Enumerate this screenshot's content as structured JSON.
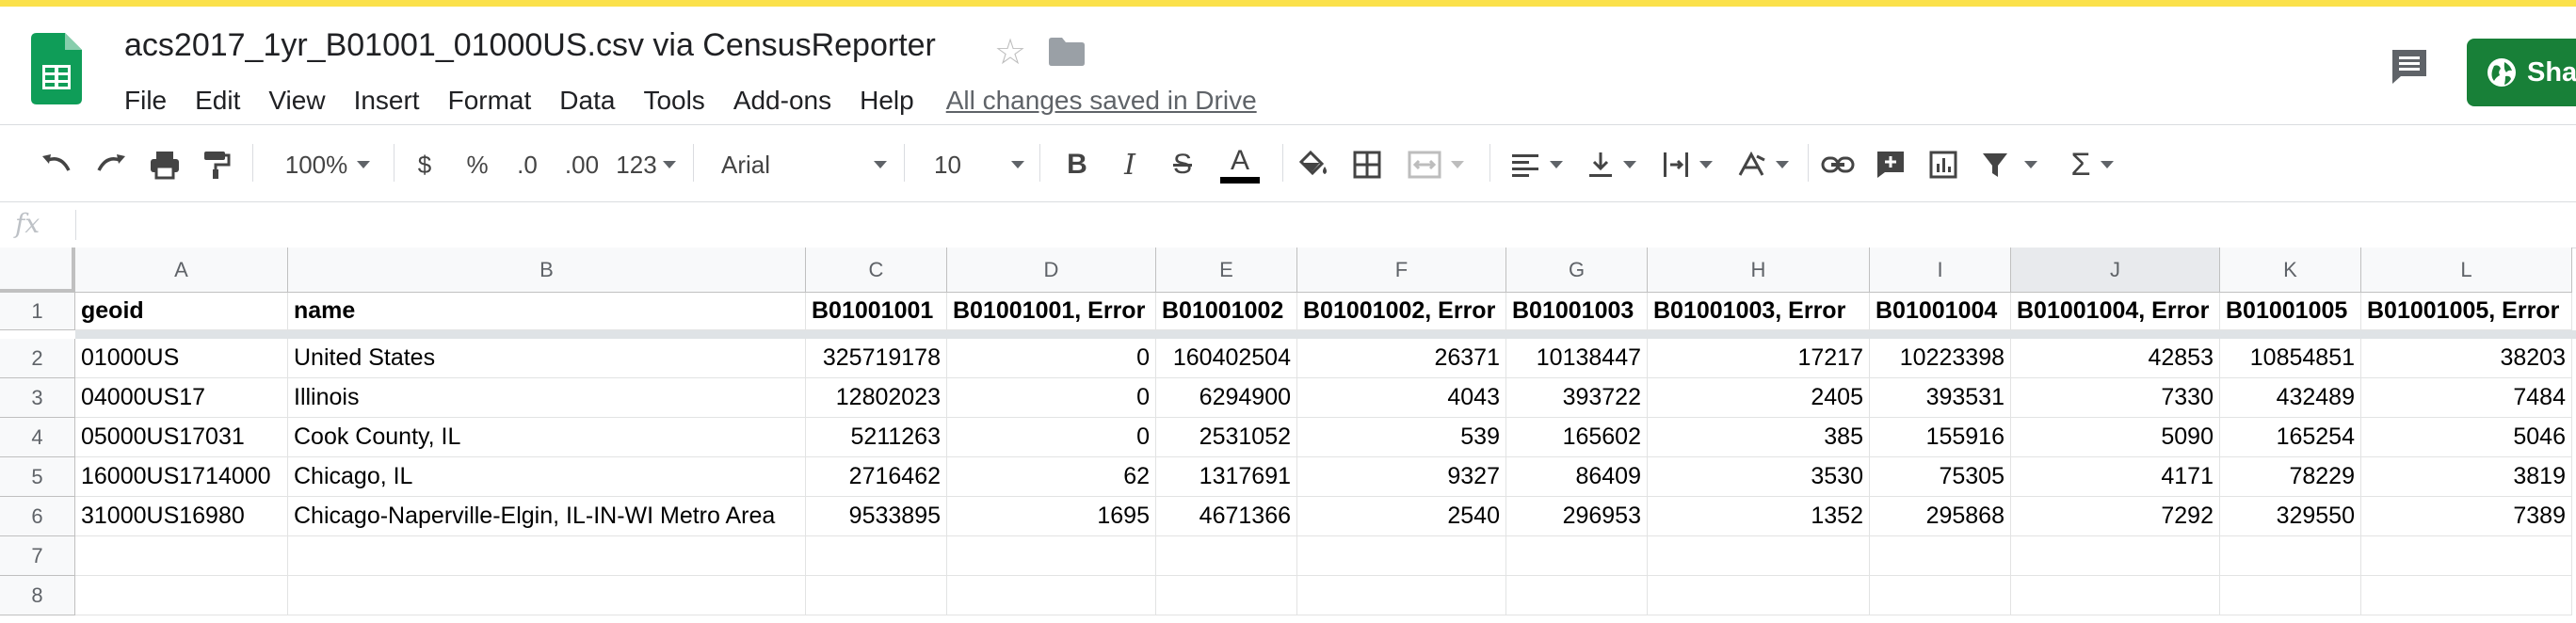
{
  "header": {
    "title": "acs2017_1yr_B01001_01000US.csv via CensusReporter",
    "menu": [
      "File",
      "Edit",
      "View",
      "Insert",
      "Format",
      "Data",
      "Tools",
      "Add-ons",
      "Help"
    ],
    "save_status": "All changes saved in Drive",
    "share_label": "Share"
  },
  "colors": {
    "accent": "#188038",
    "top_strip": "#fbe14b"
  },
  "toolbar": {
    "zoom": "100%",
    "currency": "$",
    "percent": "%",
    "decrease_decimals": ".0",
    "increase_decimals": ".00",
    "more_formats": "123",
    "font": "Arial",
    "font_size": "10",
    "bold": "B",
    "italic": "I",
    "strikethrough": "S",
    "text_color": "A"
  },
  "formula_bar": {
    "label": "fx",
    "content": ""
  },
  "sheet": {
    "columns": [
      "A",
      "B",
      "C",
      "D",
      "E",
      "F",
      "G",
      "H",
      "I",
      "J",
      "K",
      "L"
    ],
    "selected_column": "J",
    "row_numbers": [
      "1",
      "2",
      "3",
      "4",
      "5",
      "6",
      "7",
      "8"
    ],
    "rows": [
      [
        "geoid",
        "name",
        "B01001001",
        "B01001001, Error",
        "B01001002",
        "B01001002, Error",
        "B01001003",
        "B01001003, Error",
        "B01001004",
        "B01001004, Error",
        "B01001005",
        "B01001005, Error"
      ],
      [
        "01000US",
        "United States",
        "325719178",
        "0",
        "160402504",
        "26371",
        "10138447",
        "17217",
        "10223398",
        "42853",
        "10854851",
        "38203"
      ],
      [
        "04000US17",
        "Illinois",
        "12802023",
        "0",
        "6294900",
        "4043",
        "393722",
        "2405",
        "393531",
        "7330",
        "432489",
        "7484"
      ],
      [
        "05000US17031",
        "Cook County, IL",
        "5211263",
        "0",
        "2531052",
        "539",
        "165602",
        "385",
        "155916",
        "5090",
        "165254",
        "5046"
      ],
      [
        "16000US1714000",
        "Chicago, IL",
        "2716462",
        "62",
        "1317691",
        "9327",
        "86409",
        "3530",
        "75305",
        "4171",
        "78229",
        "3819"
      ],
      [
        "31000US16980",
        "Chicago-Naperville-Elgin, IL-IN-WI Metro Area",
        "9533895",
        "1695",
        "4671366",
        "2540",
        "296953",
        "1352",
        "295868",
        "7292",
        "329550",
        "7389"
      ],
      [
        "",
        "",
        "",
        "",
        "",
        "",
        "",
        "",
        "",
        "",
        "",
        ""
      ],
      [
        "",
        "",
        "",
        "",
        "",
        "",
        "",
        "",
        "",
        "",
        "",
        ""
      ]
    ]
  }
}
